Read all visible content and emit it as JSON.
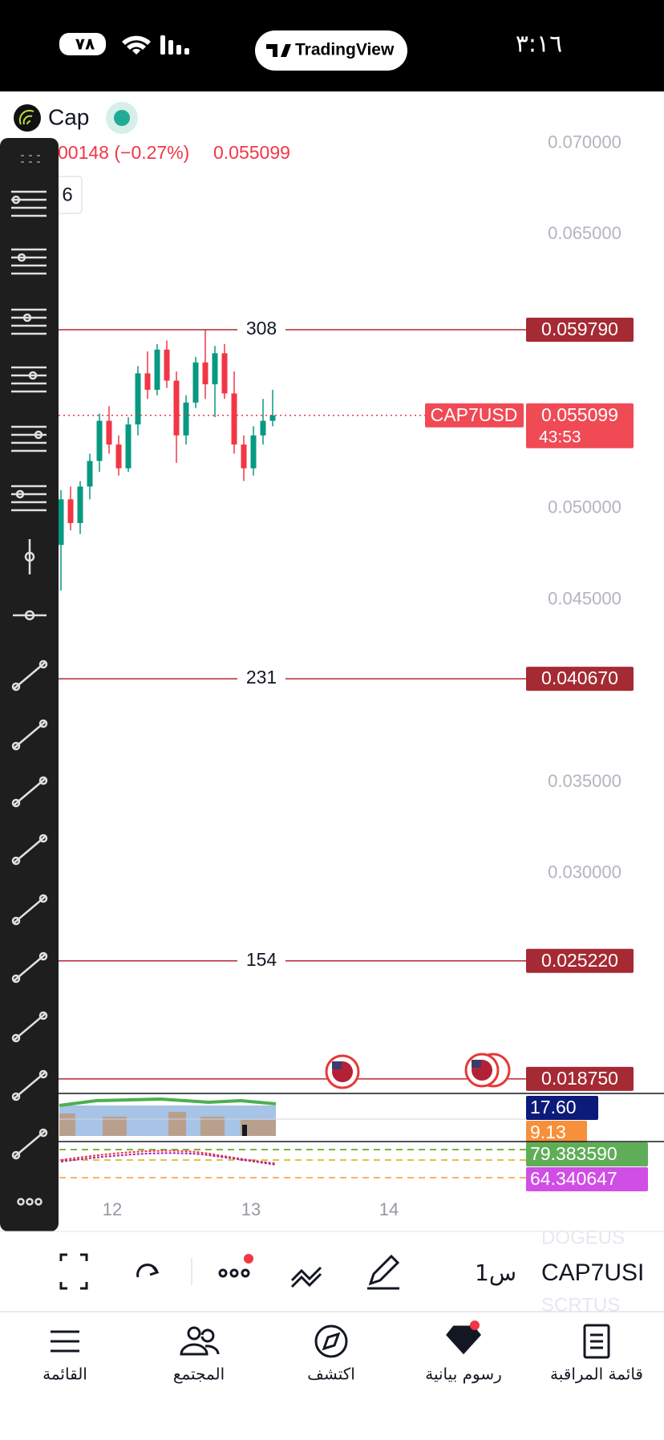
{
  "status_bar": {
    "battery": "٧٨",
    "app": "TradingView",
    "time": "٣:١٦"
  },
  "header": {
    "symbol": "Cap",
    "change": "00148 (−0.27%)",
    "price": "0.055099",
    "interval": 6
  },
  "chart": {
    "type": "candlestick",
    "ylim": [
      0.018,
      0.0735
    ],
    "price_axis": [
      {
        "value": 0.07,
        "label": "0.070000"
      },
      {
        "value": 0.065,
        "label": "0.065000"
      },
      {
        "value": 0.05,
        "label": "0.050000"
      },
      {
        "value": 0.045,
        "label": "0.045000"
      },
      {
        "value": 0.035,
        "label": "0.035000"
      },
      {
        "value": 0.03,
        "label": "0.030000"
      }
    ],
    "candles": [
      [
        0.048,
        0.051,
        0.0455,
        0.0505
      ],
      [
        0.0505,
        0.0512,
        0.0488,
        0.0492
      ],
      [
        0.0492,
        0.0515,
        0.0486,
        0.0512
      ],
      [
        0.0512,
        0.053,
        0.0505,
        0.0526
      ],
      [
        0.0526,
        0.0552,
        0.052,
        0.0548
      ],
      [
        0.0548,
        0.0556,
        0.053,
        0.0535
      ],
      [
        0.0535,
        0.054,
        0.0518,
        0.0522
      ],
      [
        0.0522,
        0.055,
        0.052,
        0.0546
      ],
      [
        0.0546,
        0.0578,
        0.054,
        0.0574
      ],
      [
        0.0574,
        0.0586,
        0.056,
        0.0565
      ],
      [
        0.0565,
        0.059,
        0.0562,
        0.0587
      ],
      [
        0.0587,
        0.0592,
        0.0566,
        0.057
      ],
      [
        0.057,
        0.0575,
        0.0525,
        0.054
      ],
      [
        0.054,
        0.0562,
        0.0535,
        0.0558
      ],
      [
        0.0558,
        0.0583,
        0.0555,
        0.058
      ],
      [
        0.058,
        0.0598,
        0.056,
        0.0568
      ],
      [
        0.0568,
        0.0589,
        0.055,
        0.0585
      ],
      [
        0.0585,
        0.059,
        0.056,
        0.0563
      ],
      [
        0.0563,
        0.0575,
        0.053,
        0.0535
      ],
      [
        0.0535,
        0.054,
        0.0515,
        0.0522
      ],
      [
        0.0522,
        0.0545,
        0.0518,
        0.054
      ],
      [
        0.054,
        0.056,
        0.0535,
        0.0548
      ],
      [
        0.0548,
        0.0565,
        0.0545,
        0.0551
      ]
    ],
    "levels": [
      {
        "label": 308,
        "price": {
          "value": 0.05979,
          "label": "0.059790"
        }
      },
      {
        "label": 231,
        "price": {
          "value": 0.04067,
          "label": "0.040670"
        }
      },
      {
        "label": 154,
        "price": {
          "value": 0.02522,
          "label": "0.025220"
        }
      },
      {
        "price": {
          "value": 0.01875,
          "label": "0.018750"
        }
      }
    ],
    "current": {
      "symbol": "CAP7USD",
      "price": {
        "value": 0.055099,
        "label": "0.055099"
      },
      "countdown": "43:53"
    },
    "indicators": [
      {
        "value": 17.6,
        "label": "17.60",
        "color": "#0c1a7a"
      },
      {
        "value": 9.13,
        "color": "#f7903a"
      },
      {
        "value": 79.38359,
        "label": "79.383590",
        "color": "#5fae57"
      },
      {
        "value": 64.340647,
        "color": "#d04ee6"
      }
    ],
    "x_labels": [
      12,
      13,
      14
    ]
  },
  "toolbar": {
    "interval": "1س",
    "symbol": "CAP7USI",
    "prev_symbol": "DOGEUS",
    "next_symbol": "SCRTUS"
  },
  "nav": [
    "القائمة",
    "المجتمع",
    "اكتشف",
    "رسوم بيانية",
    "قائمة المراقبة"
  ]
}
